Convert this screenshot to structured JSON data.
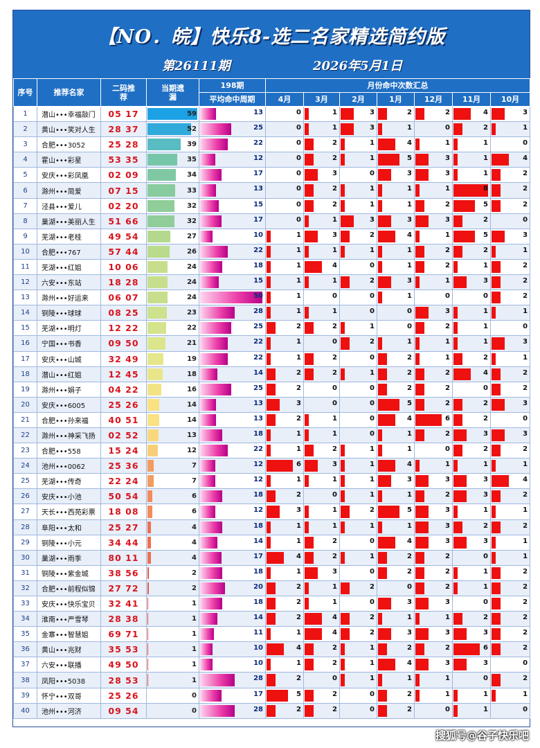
{
  "header": {
    "title": "【NO．皖】快乐8-选二名家精选简约版",
    "issue": "第26111期",
    "date": "2026年5月1日"
  },
  "columns": {
    "idx": "序号",
    "name": "推荐名家",
    "pick": "二码推荐",
    "miss": "当期遗漏",
    "avg_top": "198期",
    "avg": "平均命中周期",
    "months_group": "月份命中次数汇总",
    "months": [
      "4月",
      "3月",
      "2月",
      "1月",
      "12月",
      "11月",
      "10月"
    ]
  },
  "colors": {
    "header_blue": "#1f6fc4",
    "pick_red": "#d8141e",
    "bar_red": "#ef1010",
    "avg_magenta": "#ec3fa8",
    "miss_blue": "#1aa3e6",
    "miss_red": "#ee3333"
  },
  "rows": [
    {
      "idx": "1",
      "name": "潜山•••幸福敲门",
      "pick": "05 17",
      "miss": 59,
      "avg": 13,
      "m": [
        0,
        1,
        3,
        2,
        2,
        4,
        3
      ]
    },
    {
      "idx": "2",
      "name": "黄山•••笑对人生",
      "pick": "28 37",
      "miss": 52,
      "avg": 25,
      "m": [
        0,
        1,
        3,
        1,
        0,
        2,
        1
      ]
    },
    {
      "idx": "3",
      "name": "合肥•••3052",
      "pick": "25 28",
      "miss": 39,
      "avg": 22,
      "m": [
        0,
        2,
        1,
        4,
        1,
        1,
        0
      ]
    },
    {
      "idx": "4",
      "name": "霍山•••彩星",
      "pick": "53 35",
      "miss": 35,
      "avg": 12,
      "m": [
        0,
        2,
        1,
        5,
        3,
        1,
        4
      ]
    },
    {
      "idx": "5",
      "name": "安庆•••彩凤凰",
      "pick": "02 09",
      "miss": 34,
      "avg": 17,
      "m": [
        0,
        3,
        0,
        3,
        3,
        1,
        2
      ]
    },
    {
      "idx": "6",
      "name": "滁州•••简爱",
      "pick": "07 15",
      "miss": 33,
      "avg": 13,
      "m": [
        0,
        2,
        1,
        1,
        1,
        8,
        2
      ]
    },
    {
      "idx": "7",
      "name": "泾县•••爱儿",
      "pick": "02 20",
      "miss": 32,
      "avg": 15,
      "m": [
        0,
        2,
        1,
        1,
        2,
        5,
        2
      ]
    },
    {
      "idx": "8",
      "name": "巢湖•••美丽人生",
      "pick": "51 66",
      "miss": 32,
      "avg": 17,
      "m": [
        0,
        1,
        3,
        3,
        3,
        2,
        0
      ]
    },
    {
      "idx": "9",
      "name": "芜湖•••老桂",
      "pick": "49 54",
      "miss": 27,
      "avg": 10,
      "m": [
        1,
        3,
        2,
        4,
        1,
        5,
        3
      ]
    },
    {
      "idx": "10",
      "name": "合肥•••767",
      "pick": "57 44",
      "miss": 26,
      "avg": 22,
      "m": [
        1,
        1,
        1,
        1,
        2,
        2,
        1
      ]
    },
    {
      "idx": "11",
      "name": "芜湖•••红姐",
      "pick": "10 06",
      "miss": 24,
      "avg": 18,
      "m": [
        1,
        4,
        0,
        1,
        2,
        1,
        2
      ]
    },
    {
      "idx": "12",
      "name": "六安•••东站",
      "pick": "18 28",
      "miss": 24,
      "avg": 15,
      "m": [
        1,
        1,
        2,
        3,
        1,
        3,
        2
      ]
    },
    {
      "idx": "13",
      "name": "滁州•••好运来",
      "pick": "06 07",
      "miss": 24,
      "avg": 50,
      "m": [
        1,
        0,
        0,
        1,
        0,
        0,
        2
      ]
    },
    {
      "idx": "14",
      "name": "铜陵•••球球",
      "pick": "08 25",
      "miss": 23,
      "avg": 28,
      "m": [
        1,
        1,
        0,
        0,
        3,
        1,
        1
      ]
    },
    {
      "idx": "15",
      "name": "芜湖•••明灯",
      "pick": "12 22",
      "miss": 22,
      "avg": 25,
      "m": [
        2,
        2,
        1,
        0,
        2,
        1,
        0
      ]
    },
    {
      "idx": "16",
      "name": "宁国•••书香",
      "pick": "09 50",
      "miss": 21,
      "avg": 22,
      "m": [
        1,
        0,
        2,
        1,
        1,
        1,
        3
      ]
    },
    {
      "idx": "17",
      "name": "安庆•••山城",
      "pick": "32 49",
      "miss": 19,
      "avg": 22,
      "m": [
        1,
        2,
        0,
        2,
        1,
        2,
        1
      ]
    },
    {
      "idx": "18",
      "name": "潜山•••红姐",
      "pick": "12 45",
      "miss": 18,
      "avg": 14,
      "m": [
        2,
        2,
        1,
        2,
        2,
        4,
        2
      ]
    },
    {
      "idx": "19",
      "name": "滁州•••娟子",
      "pick": "04 22",
      "miss": 16,
      "avg": 25,
      "m": [
        2,
        0,
        0,
        2,
        2,
        0,
        2
      ]
    },
    {
      "idx": "20",
      "name": "安庆•••6005",
      "pick": "25 26",
      "miss": 14,
      "avg": 13,
      "m": [
        3,
        0,
        0,
        5,
        2,
        2,
        3
      ]
    },
    {
      "idx": "21",
      "name": "合肥•••孙来福",
      "pick": "40 51",
      "miss": 14,
      "avg": 13,
      "m": [
        2,
        1,
        0,
        4,
        6,
        2,
        0
      ]
    },
    {
      "idx": "22",
      "name": "滁州•••神采飞扬",
      "pick": "02 52",
      "miss": 13,
      "avg": 18,
      "m": [
        1,
        1,
        0,
        1,
        2,
        3,
        3
      ]
    },
    {
      "idx": "23",
      "name": "合肥•••558",
      "pick": "15 24",
      "miss": 12,
      "avg": 22,
      "m": [
        1,
        2,
        1,
        1,
        0,
        2,
        2
      ]
    },
    {
      "idx": "24",
      "name": "池州•••0062",
      "pick": "25 36",
      "miss": 7,
      "avg": 12,
      "m": [
        6,
        3,
        1,
        4,
        1,
        1,
        1
      ]
    },
    {
      "idx": "25",
      "name": "芜湖•••传奇",
      "pick": "22 24",
      "miss": 7,
      "avg": 12,
      "m": [
        1,
        1,
        1,
        3,
        3,
        3,
        4
      ]
    },
    {
      "idx": "26",
      "name": "安庆•••小池",
      "pick": "50 54",
      "miss": 6,
      "avg": 18,
      "m": [
        2,
        0,
        1,
        1,
        2,
        3,
        2
      ]
    },
    {
      "idx": "27",
      "name": "天长•••西苑彩票",
      "pick": "18 08",
      "miss": 6,
      "avg": 12,
      "m": [
        3,
        1,
        2,
        5,
        3,
        1,
        1
      ]
    },
    {
      "idx": "28",
      "name": "阜阳•••太和",
      "pick": "25 27",
      "miss": 4,
      "avg": 18,
      "m": [
        1,
        1,
        1,
        1,
        3,
        2,
        2
      ]
    },
    {
      "idx": "29",
      "name": "铜陵•••小元",
      "pick": "34 44",
      "miss": 4,
      "avg": 14,
      "m": [
        1,
        2,
        0,
        4,
        3,
        3,
        1
      ]
    },
    {
      "idx": "30",
      "name": "巢湖•••雨季",
      "pick": "80 11",
      "miss": 4,
      "avg": 17,
      "m": [
        4,
        2,
        1,
        2,
        2,
        0,
        1
      ]
    },
    {
      "idx": "31",
      "name": "铜陵•••紫金城",
      "pick": "38 56",
      "miss": 2,
      "avg": 18,
      "m": [
        1,
        3,
        0,
        2,
        2,
        1,
        2
      ]
    },
    {
      "idx": "32",
      "name": "合肥•••前程似锦",
      "pick": "27 72",
      "miss": 2,
      "avg": 20,
      "m": [
        2,
        1,
        2,
        0,
        2,
        1,
        2
      ]
    },
    {
      "idx": "33",
      "name": "安庆•••快乐宝贝",
      "pick": "32 41",
      "miss": 1,
      "avg": 18,
      "m": [
        2,
        1,
        0,
        3,
        3,
        0,
        2
      ]
    },
    {
      "idx": "34",
      "name": "淮南•••严雪琴",
      "pick": "28 38",
      "miss": 1,
      "avg": 14,
      "m": [
        2,
        4,
        2,
        1,
        1,
        2,
        2
      ]
    },
    {
      "idx": "35",
      "name": "金寨•••智慧姐",
      "pick": "69 71",
      "miss": 1,
      "avg": 11,
      "m": [
        1,
        4,
        2,
        3,
        3,
        3,
        2
      ]
    },
    {
      "idx": "36",
      "name": "黄山•••兆财",
      "pick": "35 53",
      "miss": 1,
      "avg": 10,
      "m": [
        4,
        2,
        1,
        2,
        2,
        6,
        2
      ]
    },
    {
      "idx": "37",
      "name": "六安•••联播",
      "pick": "49 50",
      "miss": 1,
      "avg": 10,
      "m": [
        1,
        2,
        1,
        4,
        3,
        3,
        0
      ]
    },
    {
      "idx": "38",
      "name": "凤阳•••5038",
      "pick": "28 53",
      "miss": 1,
      "avg": 28,
      "m": [
        2,
        0,
        1,
        1,
        1,
        0,
        2
      ]
    },
    {
      "idx": "39",
      "name": "怀宁•••双哥",
      "pick": "25 26",
      "miss": 0,
      "avg": 17,
      "m": [
        5,
        2,
        0,
        2,
        1,
        1,
        1
      ]
    },
    {
      "idx": "40",
      "name": "池州•••河济",
      "pick": "09 54",
      "miss": 0,
      "avg": 28,
      "m": [
        2,
        2,
        0,
        2,
        0,
        1,
        0
      ]
    }
  ],
  "watermark": "搜狐号@谷子快乐吧"
}
